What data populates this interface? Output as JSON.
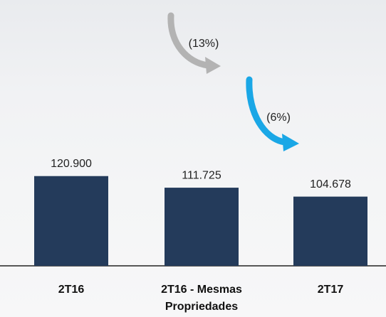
{
  "chart_data": {
    "type": "bar",
    "categories": [
      "2T16",
      "2T16 - Mesmas Propriedades",
      "2T17"
    ],
    "values": [
      120900,
      111725,
      104678
    ],
    "value_labels": [
      "120.900",
      "111.725",
      "104.678"
    ],
    "color": "#243b5b",
    "ylim": [
      50000,
      260000
    ],
    "annotations": [
      {
        "text": "(13%)",
        "color": "#b3b3b3"
      },
      {
        "text": "(6%)",
        "color": "#1aa7e6"
      }
    ]
  }
}
